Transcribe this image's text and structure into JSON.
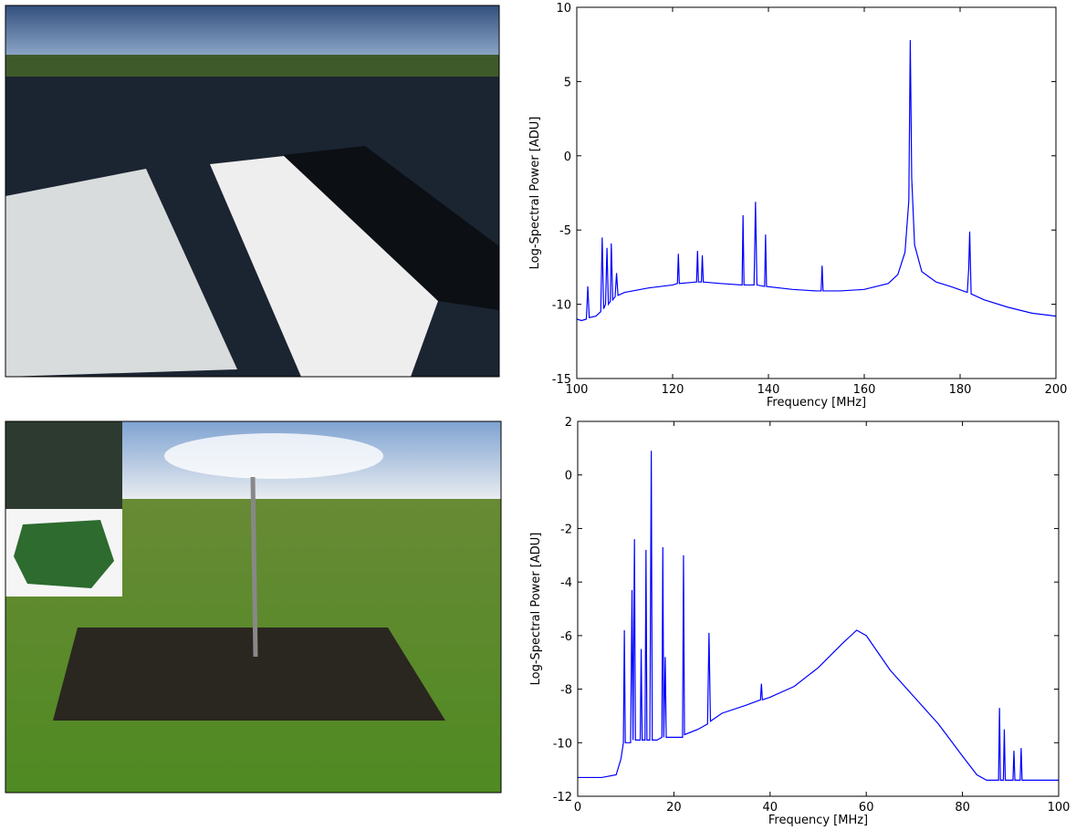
{
  "chart_data": [
    {
      "type": "line",
      "xlabel": "Frequency [MHz]",
      "ylabel": "Log-Spectral Power [ADU]",
      "xlim": [
        100,
        200
      ],
      "ylim": [
        -15,
        10
      ],
      "xticks": [
        100,
        120,
        140,
        160,
        180,
        200
      ],
      "yticks": [
        -15,
        -10,
        -5,
        0,
        5,
        10
      ],
      "x": [
        100,
        101,
        102,
        102.3,
        102.6,
        104,
        105,
        105.3,
        105.6,
        106,
        106.3,
        106.6,
        107,
        107.2,
        107.5,
        108,
        108.3,
        108.6,
        110,
        115,
        120,
        121,
        121.2,
        121.4,
        125,
        125.2,
        125.4,
        126,
        126.2,
        126.4,
        130,
        134.5,
        134.7,
        134.9,
        137,
        137.3,
        137.6,
        139.2,
        139.4,
        139.6,
        145,
        150,
        151,
        151.2,
        151.4,
        155,
        160,
        165,
        167,
        168.5,
        169.3,
        169.6,
        169.9,
        170.5,
        172,
        175,
        178,
        181.5,
        181.8,
        182,
        182.3,
        185,
        190,
        195,
        200
      ],
      "series": [
        {
          "color": "#0000ff",
          "values": [
            -11,
            -11.1,
            -11,
            -8.8,
            -10.9,
            -10.8,
            -10.5,
            -5.5,
            -10.3,
            -10,
            -6.2,
            -10,
            -9.8,
            -5.9,
            -9.7,
            -9.5,
            -7.9,
            -9.4,
            -9.2,
            -8.9,
            -8.7,
            -8.6,
            -6.6,
            -8.6,
            -8.5,
            -6.4,
            -8.5,
            -8.5,
            -6.7,
            -8.5,
            -8.6,
            -8.7,
            -4,
            -8.7,
            -8.7,
            -3.1,
            -8.7,
            -8.8,
            -5.3,
            -8.8,
            -9,
            -9.1,
            -9.1,
            -7.4,
            -9.1,
            -9.1,
            -9,
            -8.6,
            -8,
            -6.5,
            -3,
            7.8,
            -1.5,
            -6,
            -7.8,
            -8.5,
            -8.8,
            -9.2,
            -7.6,
            -5.1,
            -9.3,
            -9.7,
            -10.2,
            -10.6,
            -10.8
          ]
        }
      ]
    },
    {
      "type": "line",
      "xlabel": "Frequency [MHz]",
      "ylabel": "Log-Spectral Power [ADU]",
      "xlim": [
        0,
        100
      ],
      "ylim": [
        -12,
        2
      ],
      "xticks": [
        0,
        20,
        40,
        60,
        80,
        100
      ],
      "yticks": [
        -12,
        -10,
        -8,
        -6,
        -4,
        -2,
        0,
        2
      ],
      "x": [
        0,
        5,
        8,
        9,
        9.5,
        9.7,
        9.9,
        11,
        11.3,
        11.5,
        11.8,
        12,
        13,
        13.2,
        13.4,
        14,
        14.2,
        14.4,
        15,
        15.3,
        15.5,
        16.5,
        17.5,
        17.7,
        17.9,
        18.2,
        18.4,
        20,
        21.8,
        22,
        22.2,
        25,
        27,
        27.3,
        27.6,
        30,
        35,
        38,
        38.2,
        38.4,
        40,
        45,
        50,
        55,
        58,
        60,
        65,
        70,
        75,
        80,
        83,
        85,
        87.5,
        87.7,
        87.9,
        88.5,
        88.7,
        88.9,
        90.5,
        90.7,
        90.9,
        92,
        92.2,
        92.4,
        95,
        100
      ],
      "series": [
        {
          "color": "#0000ff",
          "values": [
            -11.3,
            -11.3,
            -11.2,
            -10.6,
            -10,
            -5.8,
            -10,
            -10,
            -4.3,
            -9.9,
            -2.4,
            -9.9,
            -9.9,
            -6.5,
            -9.9,
            -9.9,
            -2.8,
            -9.9,
            -9.9,
            0.9,
            -9.9,
            -9.9,
            -9.8,
            -2.7,
            -9.8,
            -6.8,
            -9.8,
            -9.8,
            -9.8,
            -3,
            -9.7,
            -9.5,
            -9.3,
            -5.9,
            -9.2,
            -8.9,
            -8.6,
            -8.4,
            -7.8,
            -8.4,
            -8.3,
            -7.9,
            -7.2,
            -6.3,
            -5.8,
            -6,
            -7.3,
            -8.3,
            -9.3,
            -10.5,
            -11.2,
            -11.4,
            -11.4,
            -8.7,
            -11.4,
            -11.4,
            -9.5,
            -11.4,
            -11.4,
            -10.3,
            -11.4,
            -11.4,
            -10.2,
            -11.4,
            -11.4,
            -11.4
          ]
        }
      ]
    }
  ]
}
